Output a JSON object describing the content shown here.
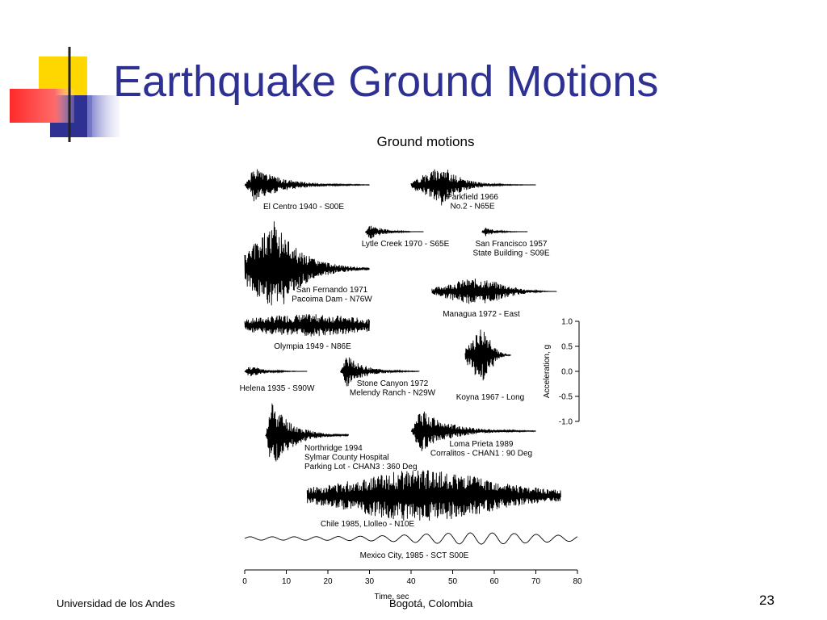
{
  "slide": {
    "title": "Earthquake Ground Motions",
    "footer_left": "Universidad de los Andes",
    "footer_center": "Bogotá, Colombia",
    "page_number": "23",
    "title_color": "#2E3192",
    "decoration_colors": [
      "#FFD700",
      "#2E3192",
      "#FF3B3B"
    ]
  },
  "chart_data": {
    "type": "line",
    "title": "Ground motions",
    "xlabel": "Time, sec",
    "ylabel": "Acceleration, g",
    "xticks": [
      "0",
      "10",
      "20",
      "30",
      "40",
      "50",
      "60",
      "70",
      "80"
    ],
    "xlim": [
      0,
      80
    ],
    "yticks": [
      "1.0",
      "0.5",
      "0.0",
      "-0.5",
      "-1.0"
    ],
    "ylim": [
      -1.0,
      1.0
    ],
    "grid": false,
    "series": [
      {
        "name": "El Centro 1940 - S00E",
        "start": 0,
        "end": 30,
        "peak": 0.34
      },
      {
        "name": "Parkfield 1966 No.2 - N65E",
        "start": 40,
        "end": 70,
        "peak": 0.49
      },
      {
        "name": "Lytle Creek 1970 - S65E",
        "start": 29,
        "end": 43,
        "peak": 0.2
      },
      {
        "name": "San Francisco 1957 State Building - S09E",
        "start": 57,
        "end": 68,
        "peak": 0.1
      },
      {
        "name": "San Fernando 1971 Pacoima Dam - N76W",
        "start": 0,
        "end": 30,
        "peak": 1.17
      },
      {
        "name": "Managua 1972 - East",
        "start": 45,
        "end": 75,
        "peak": 0.37
      },
      {
        "name": "Olympia 1949 - N86E",
        "start": 0,
        "end": 30,
        "peak": 0.28
      },
      {
        "name": "Helena 1935 - S90W",
        "start": 0,
        "end": 15,
        "peak": 0.15
      },
      {
        "name": "Stone Canyon 1972 Melendy Ranch - N29W",
        "start": 23,
        "end": 42,
        "peak": 0.65
      },
      {
        "name": "Koyna 1967 - Long",
        "start": 53,
        "end": 64,
        "peak": 0.63
      },
      {
        "name": "Northridge 1994 Sylmar County Hospital Parking Lot - CHAN3 : 360 Deg",
        "start": 5,
        "end": 25,
        "peak": 0.91
      },
      {
        "name": "Loma Prieta 1989 Corralitos - CHAN1 : 90 Deg",
        "start": 40,
        "end": 70,
        "peak": 0.64
      },
      {
        "name": "Chile 1985, Llolleo - N10E",
        "start": 15,
        "end": 76,
        "peak": 0.67
      },
      {
        "name": "Mexico City, 1985 - SCT S00E",
        "start": 0,
        "end": 80,
        "peak": 0.17
      }
    ],
    "labels": [
      [
        "El Centro 1940 - S00E"
      ],
      [
        "Parkfield 1966",
        "No.2 - N65E"
      ],
      [
        "Lytle Creek 1970 - S65E"
      ],
      [
        "San Francisco 1957",
        "State Building - S09E"
      ],
      [
        "San Fernando 1971",
        "Pacoima Dam - N76W"
      ],
      [
        "Managua 1972 - East"
      ],
      [
        "Olympia 1949 - N86E"
      ],
      [
        "Helena 1935 - S90W"
      ],
      [
        "Stone Canyon 1972",
        "Melendy Ranch - N29W"
      ],
      [
        "Koyna 1967 - Long"
      ],
      [
        "Northridge 1994",
        "Sylmar County Hospital",
        "Parking Lot - CHAN3 : 360 Deg"
      ],
      [
        "Loma Prieta 1989",
        "Corralitos - CHAN1 : 90 Deg"
      ],
      [
        "Chile 1985, Llolleo - N10E"
      ],
      [
        "Mexico City, 1985 - SCT S00E"
      ]
    ]
  }
}
